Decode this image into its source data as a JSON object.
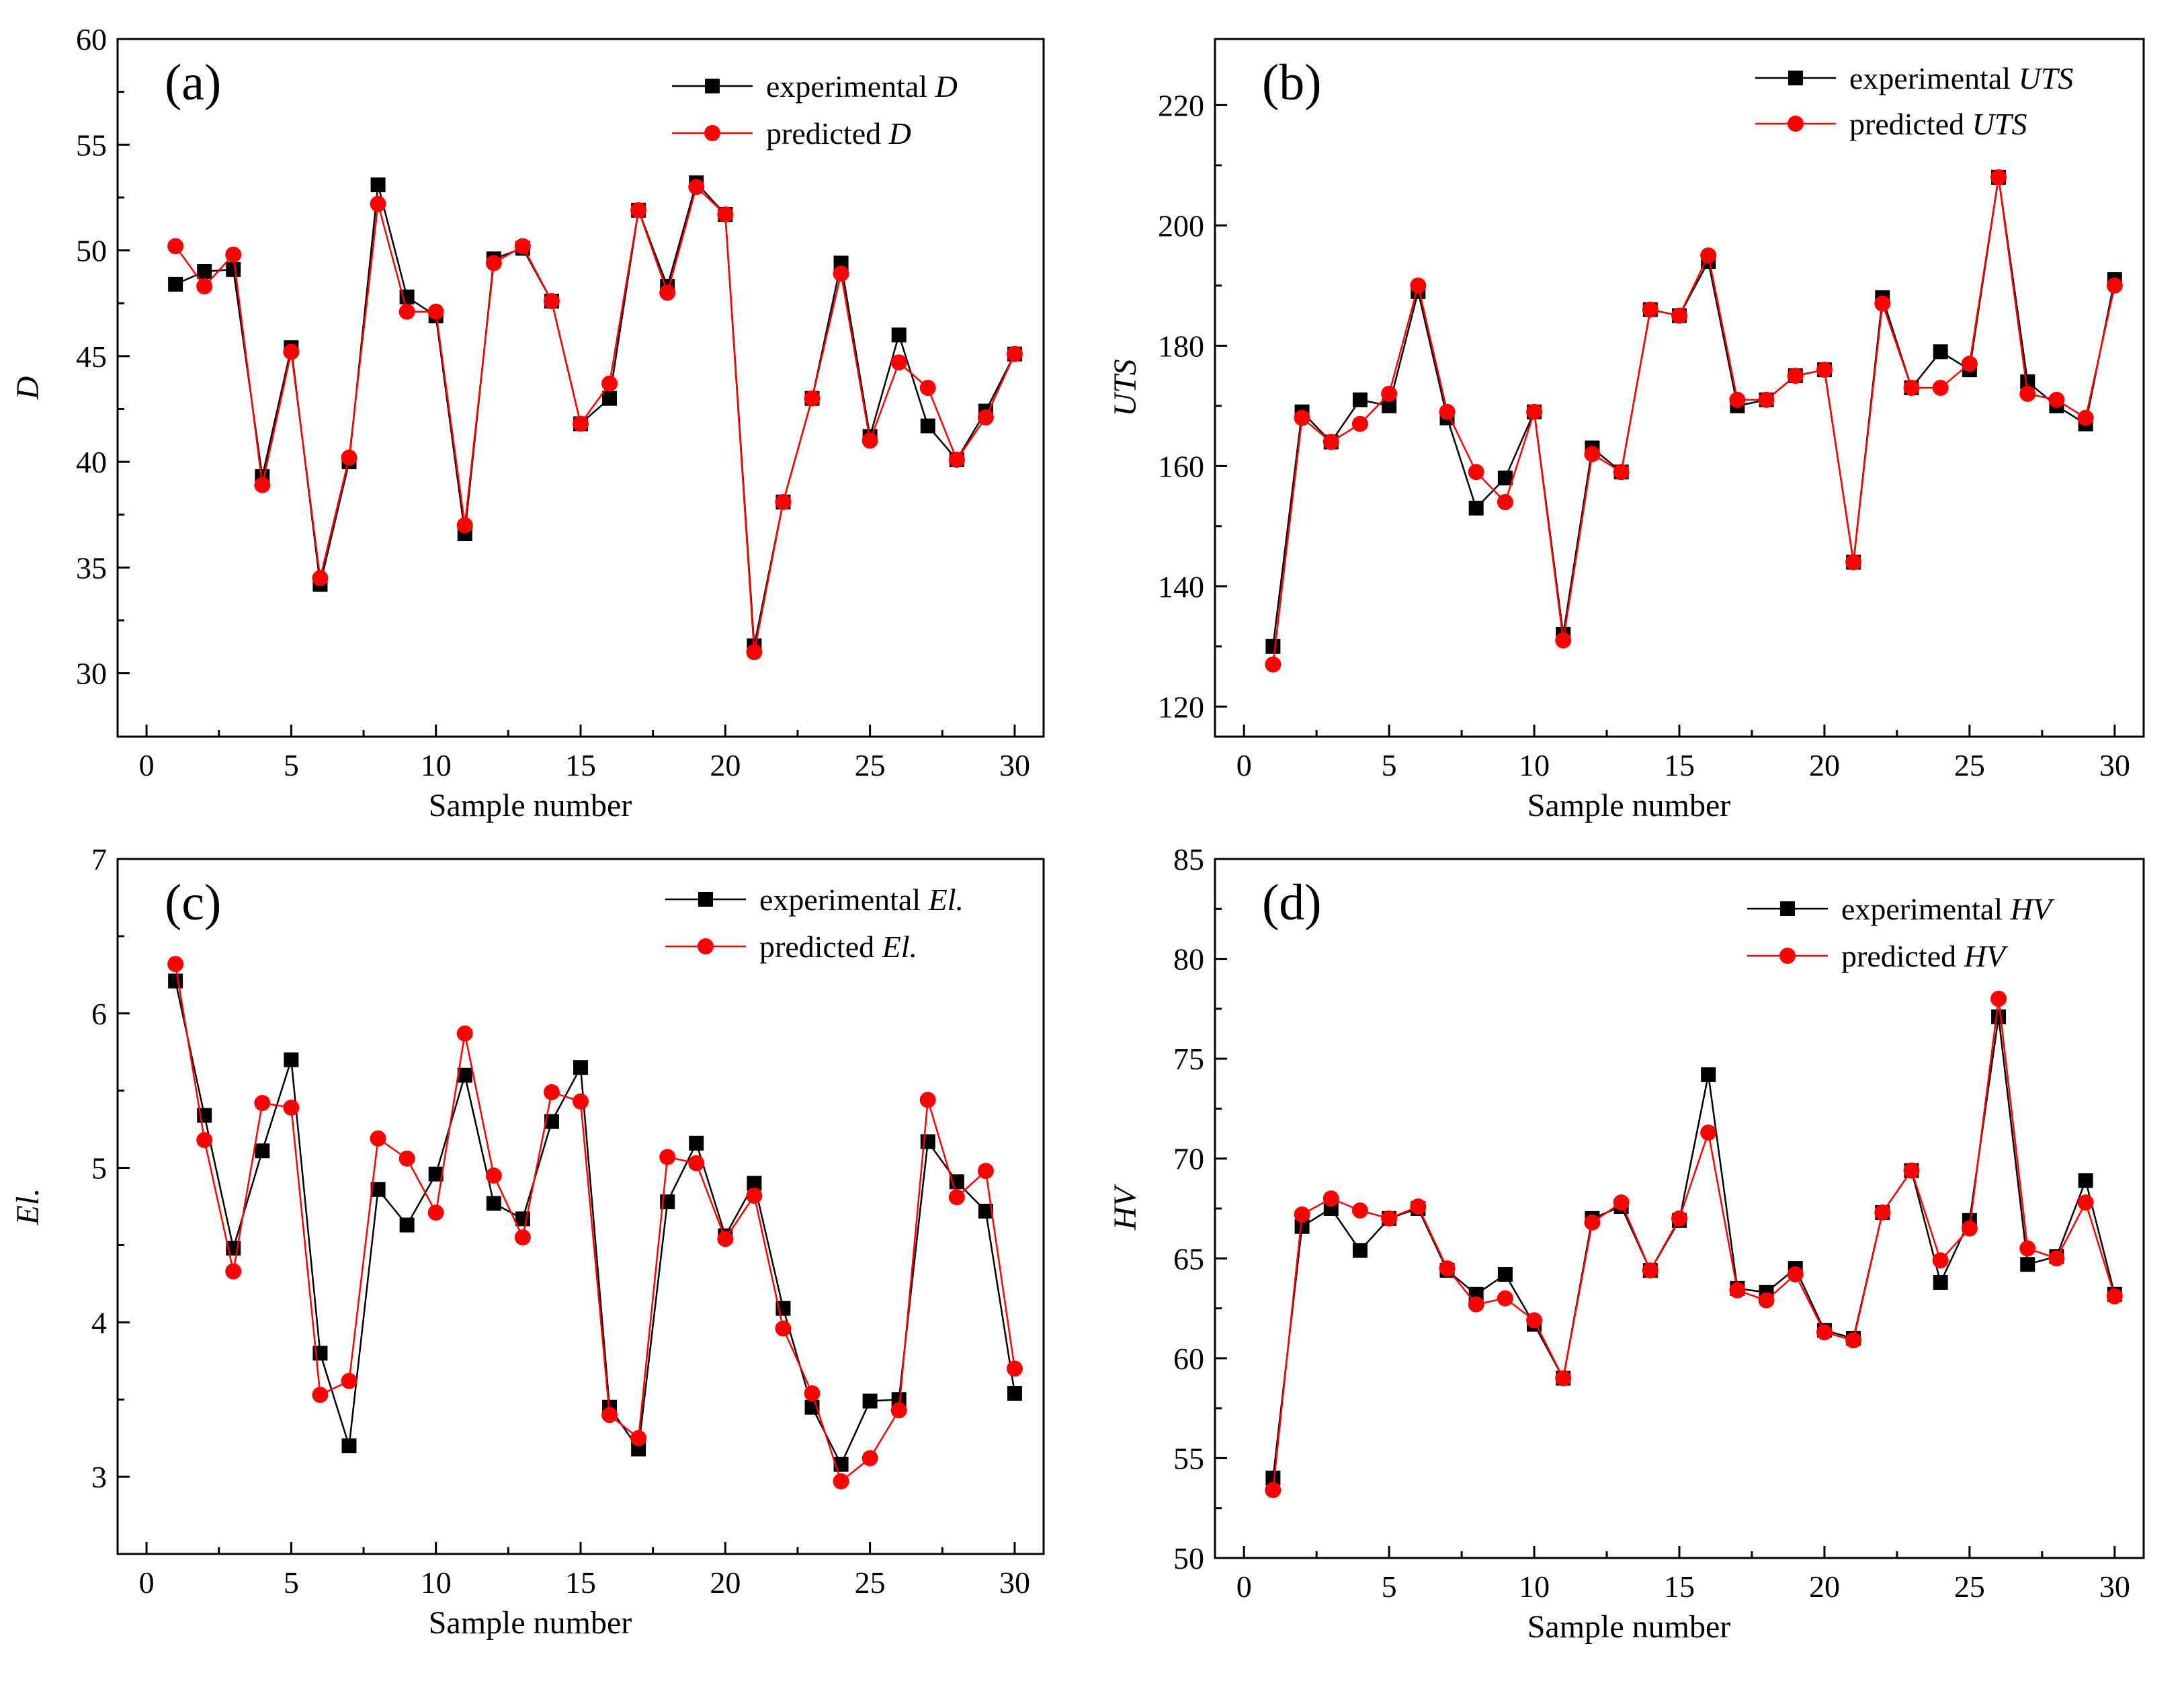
{
  "chart_data": [
    {
      "type": "line",
      "panel": "(a)",
      "xlabel": "Sample number",
      "ylabel": "D",
      "xlim": [
        -1,
        31
      ],
      "ylim": [
        27,
        60
      ],
      "xticks": [
        0,
        5,
        10,
        15,
        20,
        25,
        30
      ],
      "yticks": [
        30,
        35,
        40,
        45,
        50,
        55,
        60
      ],
      "legend_position": "top-right",
      "x": [
        1,
        2,
        3,
        4,
        5,
        6,
        7,
        8,
        9,
        10,
        11,
        12,
        13,
        14,
        15,
        16,
        17,
        18,
        19,
        20,
        21,
        22,
        23,
        24,
        25,
        26,
        27,
        28,
        29,
        30
      ],
      "series": [
        {
          "name": "experimental ",
          "symbol": "D",
          "color": "#000000",
          "marker": "square",
          "values": [
            48.4,
            49.0,
            49.1,
            39.3,
            45.4,
            34.2,
            40.0,
            53.1,
            47.8,
            46.9,
            36.6,
            49.6,
            50.1,
            47.6,
            41.8,
            43.0,
            51.9,
            48.3,
            53.2,
            51.7,
            31.3,
            38.1,
            43.0,
            49.4,
            41.2,
            46.0,
            41.7,
            40.1,
            42.4,
            45.1
          ]
        },
        {
          "name": "predicted ",
          "symbol": "D",
          "color": "#ff0000",
          "marker": "circle",
          "values": [
            50.2,
            48.3,
            49.8,
            38.9,
            45.2,
            34.5,
            40.2,
            52.2,
            47.1,
            47.1,
            37.0,
            49.4,
            50.2,
            47.6,
            41.8,
            43.7,
            51.9,
            48.0,
            53.0,
            51.7,
            31.0,
            38.1,
            43.0,
            48.9,
            41.0,
            44.7,
            43.5,
            40.1,
            42.1,
            45.1
          ]
        }
      ]
    },
    {
      "type": "line",
      "panel": "(b)",
      "xlabel": "Sample number",
      "ylabel": "UTS",
      "xlim": [
        -1,
        31
      ],
      "ylim": [
        115,
        231
      ],
      "xticks": [
        0,
        5,
        10,
        15,
        20,
        25,
        30
      ],
      "yticks": [
        120,
        140,
        160,
        180,
        200,
        220
      ],
      "legend_position": "top-right",
      "x": [
        1,
        2,
        3,
        4,
        5,
        6,
        7,
        8,
        9,
        10,
        11,
        12,
        13,
        14,
        15,
        16,
        17,
        18,
        19,
        20,
        21,
        22,
        23,
        24,
        25,
        26,
        27,
        28,
        29,
        30
      ],
      "series": [
        {
          "name": "experimental ",
          "symbol": "UTS",
          "color": "#000000",
          "marker": "square",
          "values": [
            130,
            169,
            164,
            171,
            170,
            189,
            168,
            153,
            158,
            169,
            132,
            163,
            159,
            186,
            185,
            194,
            170,
            171,
            175,
            176,
            144,
            188,
            173,
            179,
            176,
            208,
            174,
            170,
            167,
            191
          ]
        },
        {
          "name": "predicted ",
          "symbol": "UTS",
          "color": "#ff0000",
          "marker": "circle",
          "values": [
            127,
            168,
            164,
            167,
            172,
            190,
            169,
            159,
            154,
            169,
            131,
            162,
            159,
            186,
            185,
            195,
            171,
            171,
            175,
            176,
            144,
            187,
            173,
            173,
            177,
            208,
            172,
            171,
            168,
            190
          ]
        }
      ]
    },
    {
      "type": "line",
      "panel": "(c)",
      "xlabel": "Sample number",
      "ylabel": "El.",
      "xlim": [
        -1,
        31
      ],
      "ylim": [
        2.5,
        7
      ],
      "xticks": [
        0,
        5,
        10,
        15,
        20,
        25,
        30
      ],
      "yticks": [
        3,
        4,
        5,
        6,
        7
      ],
      "legend_position": "top-right",
      "x": [
        1,
        2,
        3,
        4,
        5,
        6,
        7,
        8,
        9,
        10,
        11,
        12,
        13,
        14,
        15,
        16,
        17,
        18,
        19,
        20,
        21,
        22,
        23,
        24,
        25,
        26,
        27,
        28,
        29,
        30
      ],
      "series": [
        {
          "name": "experimental ",
          "symbol": "El.",
          "color": "#000000",
          "marker": "square",
          "values": [
            6.21,
            5.34,
            4.48,
            5.11,
            5.7,
            3.8,
            3.2,
            4.86,
            4.63,
            4.96,
            5.6,
            4.77,
            4.67,
            5.3,
            5.65,
            3.45,
            3.18,
            4.78,
            5.16,
            4.56,
            4.9,
            4.09,
            3.45,
            3.08,
            3.49,
            3.5,
            5.17,
            4.91,
            4.72,
            3.54
          ]
        },
        {
          "name": "predicted ",
          "symbol": "El.",
          "color": "#ff0000",
          "marker": "circle",
          "values": [
            6.32,
            5.18,
            4.33,
            5.42,
            5.39,
            3.53,
            3.62,
            5.19,
            5.06,
            4.71,
            5.87,
            4.95,
            4.55,
            5.49,
            5.43,
            3.4,
            3.25,
            5.07,
            5.03,
            4.54,
            4.82,
            3.96,
            3.54,
            2.97,
            3.12,
            3.43,
            5.44,
            4.81,
            4.98,
            3.7
          ]
        }
      ]
    },
    {
      "type": "line",
      "panel": "(d)",
      "xlabel": "Sample number",
      "ylabel": "HV",
      "xlim": [
        -1,
        31
      ],
      "ylim": [
        50,
        85
      ],
      "xticks": [
        0,
        5,
        10,
        15,
        20,
        25,
        30
      ],
      "yticks": [
        50,
        55,
        60,
        65,
        70,
        75,
        80,
        85
      ],
      "legend_position": "top-right",
      "x": [
        1,
        2,
        3,
        4,
        5,
        6,
        7,
        8,
        9,
        10,
        11,
        12,
        13,
        14,
        15,
        16,
        17,
        18,
        19,
        20,
        21,
        22,
        23,
        24,
        25,
        26,
        27,
        28,
        29,
        30
      ],
      "series": [
        {
          "name": "experimental ",
          "symbol": "HV",
          "color": "#000000",
          "marker": "square",
          "values": [
            54.0,
            66.6,
            67.5,
            65.4,
            67.0,
            67.5,
            64.4,
            63.2,
            64.2,
            61.7,
            59.0,
            67.0,
            67.6,
            64.4,
            66.9,
            74.2,
            63.5,
            63.3,
            64.5,
            61.4,
            61.0,
            67.3,
            69.4,
            63.8,
            66.9,
            77.1,
            64.7,
            65.1,
            68.9,
            63.2
          ]
        },
        {
          "name": "predicted ",
          "symbol": "HV",
          "color": "#ff0000",
          "marker": "circle",
          "values": [
            53.4,
            67.2,
            68.0,
            67.4,
            67.0,
            67.6,
            64.5,
            62.7,
            63.0,
            61.9,
            59.0,
            66.8,
            67.8,
            64.4,
            67.0,
            71.3,
            63.4,
            62.9,
            64.2,
            61.3,
            60.9,
            67.3,
            69.4,
            64.9,
            66.5,
            78.0,
            65.5,
            65.0,
            67.8,
            63.1
          ]
        }
      ]
    }
  ]
}
